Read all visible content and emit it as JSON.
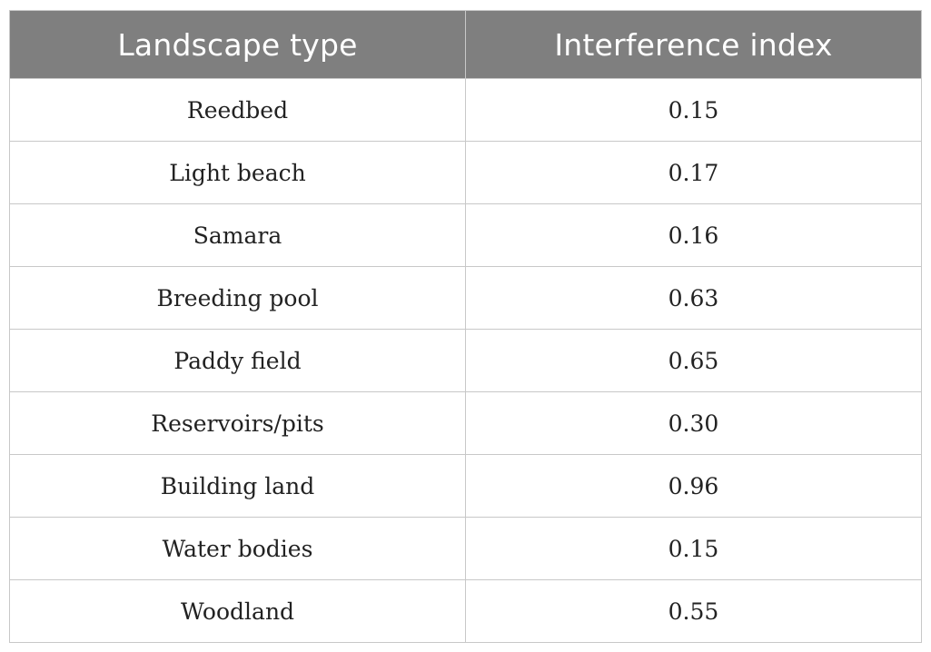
{
  "table": {
    "headers": [
      "Landscape type",
      "Interference index"
    ],
    "rows": [
      [
        "Reedbed",
        "0.15"
      ],
      [
        "Light beach",
        "0.17"
      ],
      [
        "Samara",
        "0.16"
      ],
      [
        "Breeding pool",
        "0.63"
      ],
      [
        "Paddy field",
        "0.65"
      ],
      [
        "Reservoirs/pits",
        "0.30"
      ],
      [
        "Building land",
        "0.96"
      ],
      [
        "Water bodies",
        "0.15"
      ],
      [
        "Woodland",
        "0.55"
      ]
    ]
  }
}
